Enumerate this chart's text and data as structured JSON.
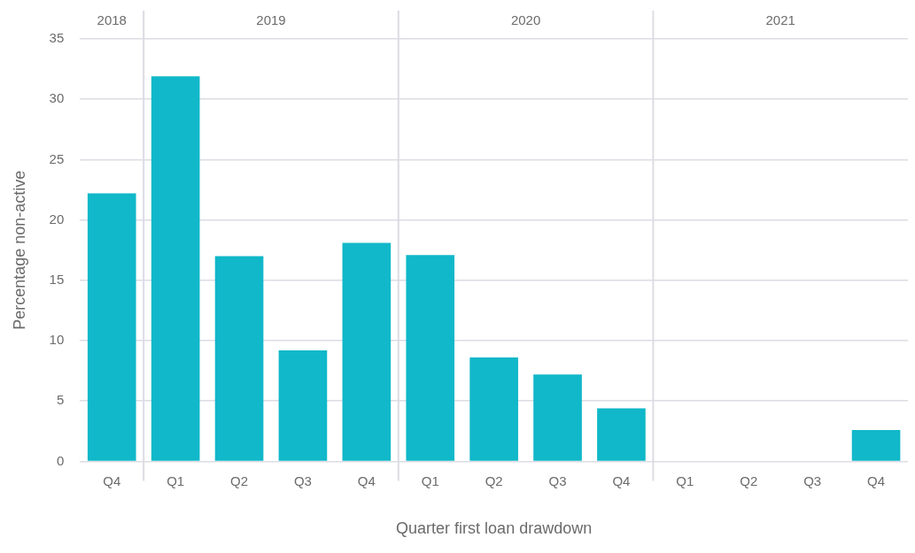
{
  "chart_data": {
    "type": "bar",
    "xlabel": "Quarter first loan drawdown",
    "ylabel": "Percentage non-active",
    "categories": [
      "Q4",
      "Q1",
      "Q2",
      "Q3",
      "Q4",
      "Q1",
      "Q2",
      "Q3",
      "Q4",
      "Q1",
      "Q2",
      "Q3",
      "Q4"
    ],
    "values": [
      22.2,
      31.9,
      17.0,
      9.2,
      18.1,
      17.1,
      8.6,
      7.2,
      4.4,
      0,
      0,
      0,
      2.6
    ],
    "color": "#10b8c9",
    "ylim": [
      0,
      35
    ],
    "yticks": [
      0,
      5,
      10,
      15,
      20,
      25,
      30,
      35
    ],
    "annotations": [
      "2018",
      "2019",
      "2020",
      "2021"
    ],
    "grid": true,
    "legend": false
  }
}
